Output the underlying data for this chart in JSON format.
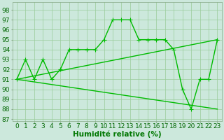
{
  "line1_x": [
    0,
    1,
    2,
    3,
    4,
    5,
    6,
    7,
    8,
    9,
    10,
    11,
    12,
    13,
    14,
    15,
    16,
    17,
    18,
    19,
    20,
    21,
    22,
    23
  ],
  "line1_y": [
    91,
    93,
    91,
    93,
    91,
    92,
    94,
    94,
    94,
    94,
    95,
    97,
    97,
    97,
    95,
    95,
    95,
    95,
    94,
    90,
    88,
    91,
    91,
    95
  ],
  "line2_x": [
    0,
    23
  ],
  "line2_y": [
    91,
    95
  ],
  "line3_x": [
    0,
    23
  ],
  "line3_y": [
    91,
    88
  ],
  "line_color": "#00bb00",
  "bg_color": "#cce8dc",
  "grid_color": "#99cc99",
  "xlabel": "Humidité relative (%)",
  "xlabel_color": "#007700",
  "xlabel_fontsize": 7.5,
  "ylabel_ticks": [
    87,
    88,
    89,
    90,
    91,
    92,
    93,
    94,
    95,
    96,
    97,
    98
  ],
  "xlim": [
    -0.5,
    23.5
  ],
  "ylim": [
    86.8,
    98.8
  ],
  "tick_fontsize": 6.5,
  "marker_size": 2.5,
  "line_width": 1.0
}
